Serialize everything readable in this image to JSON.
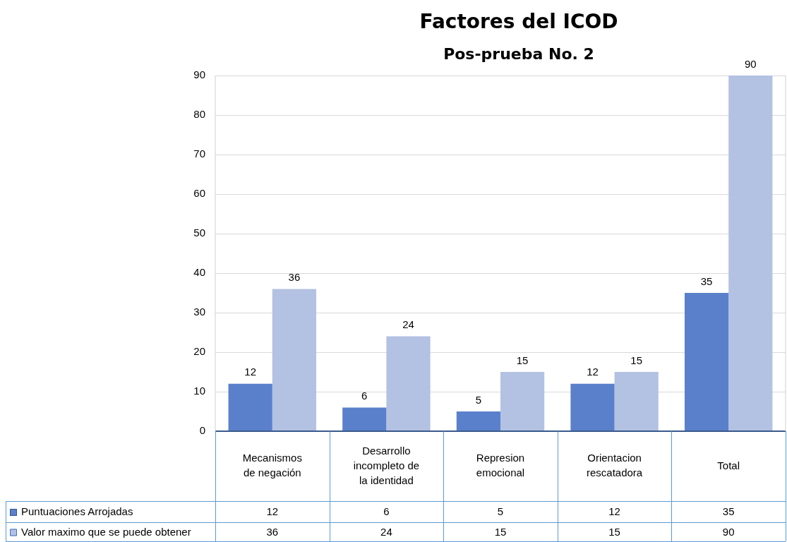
{
  "chart_data": {
    "type": "bar",
    "title": "Factores del ICOD",
    "subtitle": "Pos-prueba No. 2",
    "categories": [
      "Mecanismos de negación",
      "Desarrollo incompleto de la identidad",
      "Represion emocional",
      "Orientacion rescatadora",
      "Total"
    ],
    "series": [
      {
        "name": "Puntuaciones Arrojadas",
        "color": "#5b80cb",
        "values": [
          12,
          6,
          5,
          12,
          35
        ]
      },
      {
        "name": "Valor maximo que se puede obtener",
        "color": "#b3c1e2",
        "values": [
          36,
          24,
          15,
          15,
          90
        ]
      }
    ],
    "ylim": [
      0,
      90
    ],
    "yticks": [
      0,
      10,
      20,
      30,
      40,
      50,
      60,
      70,
      80,
      90
    ],
    "grid": "y",
    "legend": "bottom left",
    "data_labels": true,
    "annotations": [
      "12",
      "6",
      "5",
      "12",
      "35",
      "36",
      "24",
      "15",
      "15",
      "90"
    ]
  }
}
